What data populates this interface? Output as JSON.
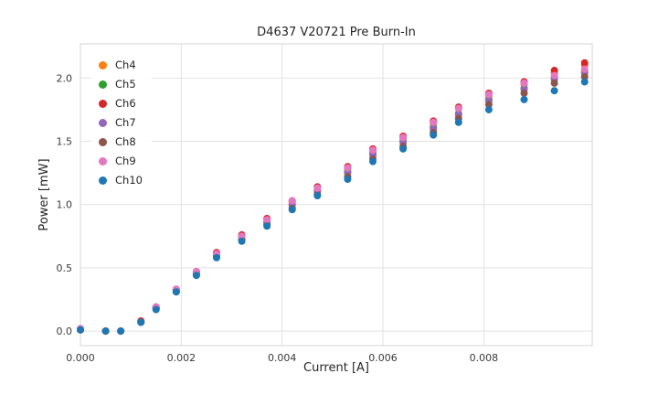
{
  "chart_data": {
    "type": "scatter",
    "title": "D4637 V20721 Pre Burn-In",
    "xlabel": "Current [A]",
    "ylabel": "Power [mW]",
    "xlim": [
      0,
      0.01015
    ],
    "ylim": [
      -0.115,
      2.27
    ],
    "grid": true,
    "legend_position": "upper left",
    "xticks": [
      0,
      0.002,
      0.004,
      0.006,
      0.008
    ],
    "xtick_labels": [
      "0.000",
      "0.002",
      "0.004",
      "0.006",
      "0.008"
    ],
    "yticks": [
      0,
      0.5,
      1.0,
      1.5,
      2.0
    ],
    "ytick_labels": [
      "0.0",
      "0.5",
      "1.0",
      "1.5",
      "2.0"
    ],
    "x": [
      0.0,
      0.0005,
      0.0008,
      0.0012,
      0.0015,
      0.0019,
      0.0023,
      0.0027,
      0.0032,
      0.0037,
      0.0042,
      0.0047,
      0.0053,
      0.0058,
      0.0064,
      0.007,
      0.0075,
      0.0081,
      0.0088,
      0.0094,
      0.01
    ],
    "series": [
      {
        "name": "Ch4",
        "color": "#ff7f0e",
        "values": [
          0.01,
          0.0,
          0.0,
          0.07,
          0.19,
          0.33,
          0.47,
          0.61,
          0.75,
          0.88,
          1.02,
          1.13,
          1.28,
          1.42,
          1.52,
          1.64,
          1.76,
          1.86,
          1.95,
          2.04,
          2.1
        ]
      },
      {
        "name": "Ch5",
        "color": "#2ca02c",
        "values": [
          0.01,
          0.0,
          0.0,
          0.07,
          0.18,
          0.32,
          0.46,
          0.6,
          0.74,
          0.86,
          1.0,
          1.11,
          1.26,
          1.4,
          1.5,
          1.61,
          1.72,
          1.83,
          1.92,
          2.0,
          2.05
        ]
      },
      {
        "name": "Ch6",
        "color": "#d62728",
        "values": [
          0.01,
          0.0,
          0.0,
          0.08,
          0.19,
          0.33,
          0.47,
          0.62,
          0.76,
          0.89,
          1.03,
          1.14,
          1.3,
          1.44,
          1.54,
          1.66,
          1.77,
          1.88,
          1.97,
          2.06,
          2.12
        ]
      },
      {
        "name": "Ch7",
        "color": "#9467bd",
        "values": [
          0.01,
          0.0,
          0.0,
          0.07,
          0.18,
          0.32,
          0.46,
          0.6,
          0.73,
          0.86,
          1.0,
          1.1,
          1.25,
          1.39,
          1.49,
          1.6,
          1.71,
          1.82,
          1.91,
          1.99,
          2.04
        ]
      },
      {
        "name": "Ch8",
        "color": "#8c564b",
        "values": [
          0.01,
          0.0,
          0.0,
          0.07,
          0.18,
          0.31,
          0.45,
          0.59,
          0.72,
          0.84,
          0.97,
          1.08,
          1.22,
          1.36,
          1.46,
          1.57,
          1.68,
          1.79,
          1.88,
          1.96,
          2.01
        ]
      },
      {
        "name": "Ch9",
        "color": "#e377c2",
        "values": [
          0.02,
          0.0,
          0.0,
          0.07,
          0.19,
          0.33,
          0.47,
          0.61,
          0.75,
          0.88,
          1.03,
          1.13,
          1.29,
          1.43,
          1.53,
          1.65,
          1.76,
          1.87,
          1.96,
          2.02,
          2.07
        ]
      },
      {
        "name": "Ch10",
        "color": "#1f77b4",
        "values": [
          0.01,
          0.0,
          0.0,
          0.07,
          0.17,
          0.31,
          0.44,
          0.58,
          0.71,
          0.83,
          0.96,
          1.07,
          1.2,
          1.34,
          1.44,
          1.55,
          1.65,
          1.75,
          1.83,
          1.9,
          1.97
        ]
      }
    ],
    "colors": {
      "grid": "#e2e2e2",
      "spine": "#d6d6d6",
      "text": "#262626"
    }
  }
}
